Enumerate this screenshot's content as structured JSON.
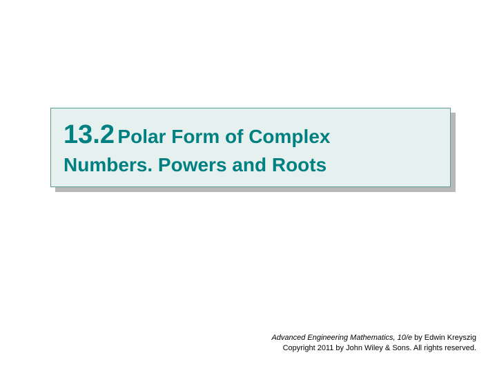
{
  "section": {
    "number": "13.2",
    "title_line1": " Polar Form of Complex",
    "title_line2": "Numbers.  Powers and Roots"
  },
  "footer": {
    "book_title": "Advanced Engineering Mathematics, 10/e",
    "author": " by Edwin Kreyszig",
    "copyright": "Copyright 2011 by John Wiley & Sons.  All rights reserved."
  },
  "colors": {
    "teal": "#008080",
    "box_bg": "#e6f0ef",
    "box_border": "#5a9b94",
    "shadow": "#b8b8b8",
    "page_bg": "#ffffff",
    "text": "#000000"
  },
  "typography": {
    "section_number_size": 38,
    "title_size": 28,
    "footer_size": 11
  }
}
